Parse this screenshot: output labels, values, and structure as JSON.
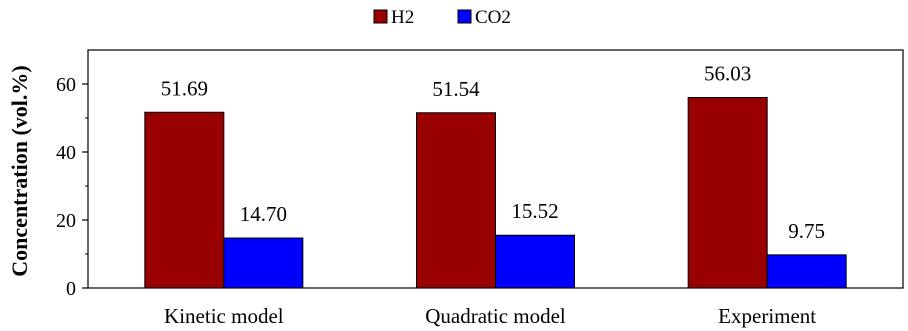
{
  "chart_data": {
    "type": "bar",
    "categories": [
      "Kinetic model",
      "Quadratic model",
      "Experiment"
    ],
    "series": [
      {
        "name": "H2",
        "values": [
          51.69,
          51.54,
          56.03
        ],
        "labels": [
          "51.69",
          "51.54",
          "56.03"
        ],
        "color": "#990000"
      },
      {
        "name": "CO2",
        "values": [
          14.7,
          15.52,
          9.75
        ],
        "labels": [
          "14.70",
          "15.52",
          "9.75"
        ],
        "color": "#0000ff"
      }
    ],
    "title": "",
    "xlabel": "",
    "ylabel": "Concentration (vol.%)",
    "ylim": [
      0,
      70
    ],
    "yticks": [
      0,
      20,
      40,
      60
    ],
    "ytick_labels": [
      "0",
      "20",
      "40",
      "60"
    ],
    "grid": false,
    "legend_position": "top-center"
  }
}
